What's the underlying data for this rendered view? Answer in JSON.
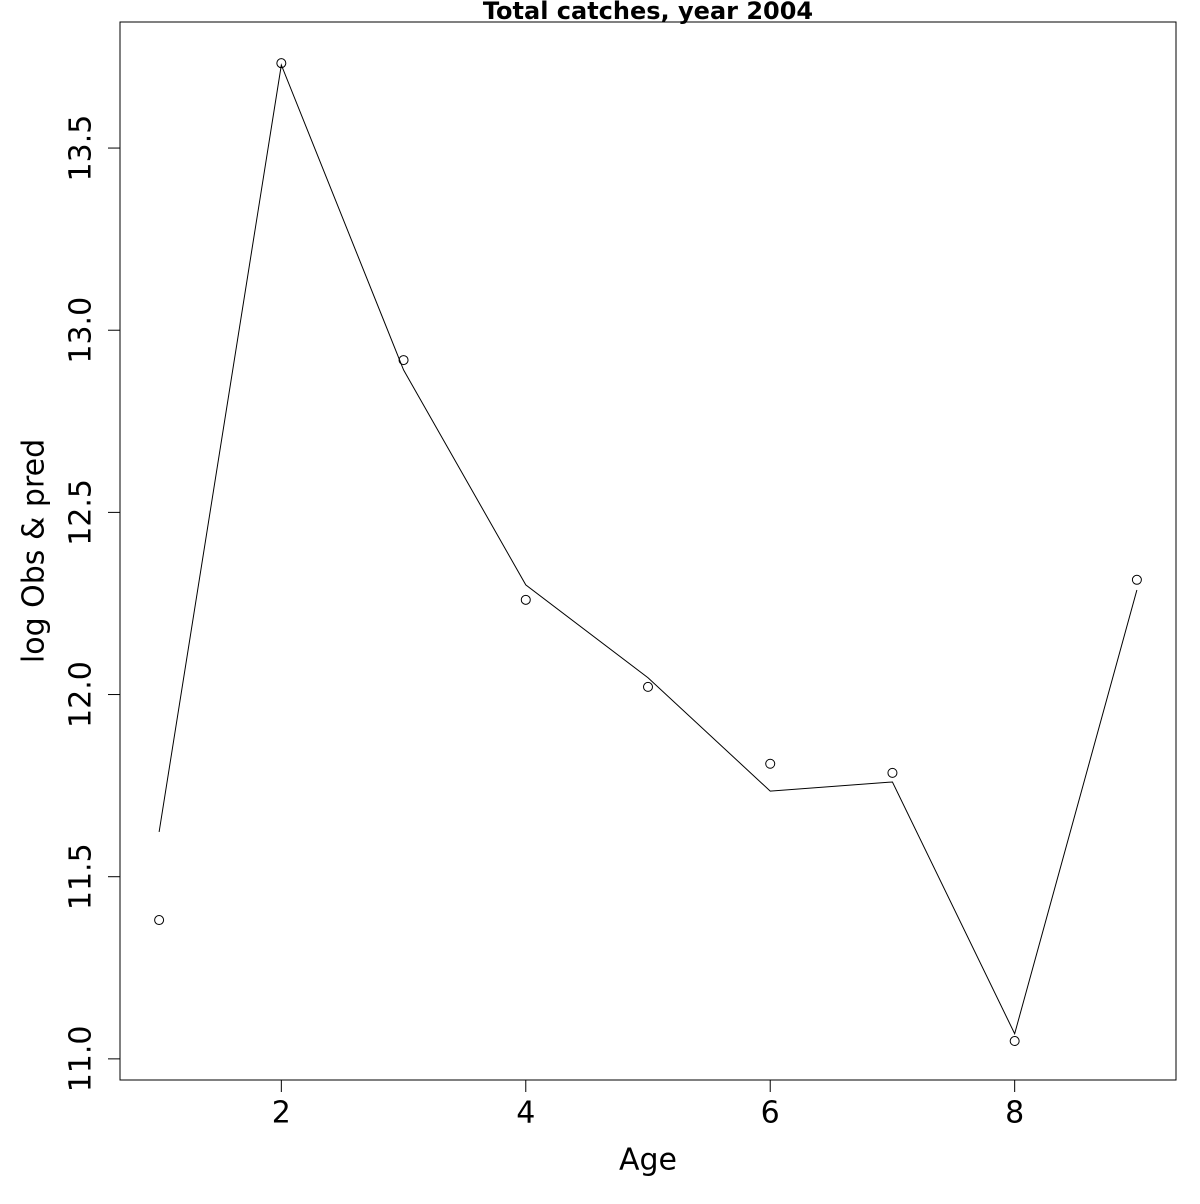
{
  "chart_data": {
    "type": "line",
    "title": "Total catches, year 2004",
    "x_label": "Age",
    "y_label": "log Obs & pred",
    "x": [
      1,
      2,
      3,
      4,
      5,
      6,
      7,
      8,
      9
    ],
    "series": [
      {
        "color": "#000000",
        "marker": "circle",
        "line": false,
        "values": [
          11.381,
          13.733,
          12.918,
          12.26,
          12.021,
          11.81,
          11.785,
          11.049,
          12.315
        ]
      },
      {
        "color": "#000000",
        "marker": "none",
        "line": true,
        "values": [
          11.623,
          13.728,
          12.891,
          12.301,
          12.046,
          11.735,
          11.76,
          11.069,
          12.287
        ]
      }
    ],
    "xlim": [
      0.68,
      9.32
    ],
    "ylim": [
      10.942,
      13.846
    ],
    "xticks": [
      2,
      4,
      6,
      8
    ],
    "yticks": [
      {
        "value": 11,
        "label": "11.0"
      },
      11.5,
      {
        "value": 12,
        "label": "12.0"
      },
      12.5,
      {
        "value": 13,
        "label": "13.0"
      },
      13.5
    ],
    "grid": false
  }
}
